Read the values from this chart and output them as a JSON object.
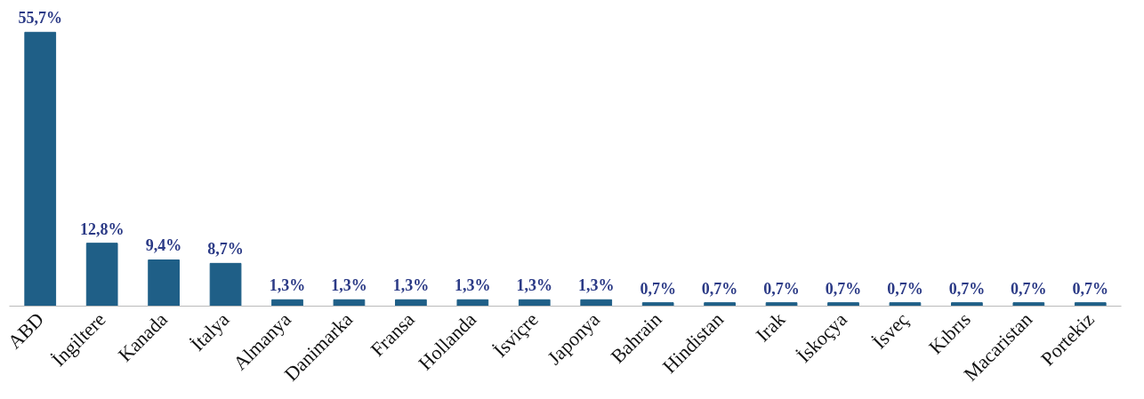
{
  "chart_data": {
    "type": "bar",
    "categories": [
      "ABD",
      "İngiltere",
      "Kanada",
      "İtalya",
      "Almanya",
      "Danimarka",
      "Fransa",
      "Hollanda",
      "İsviçre",
      "Japonya",
      "Bahrain",
      "Hindistan",
      "Irak",
      "İskoçya",
      "İsveç",
      "Kıbrıs",
      "Macaristan",
      "Portekiz"
    ],
    "values": [
      55.7,
      12.8,
      9.4,
      8.7,
      1.3,
      1.3,
      1.3,
      1.3,
      1.3,
      1.3,
      0.7,
      0.7,
      0.7,
      0.7,
      0.7,
      0.7,
      0.7,
      0.7
    ],
    "value_labels": [
      "55,7%",
      "12,8%",
      "9,4%",
      "8,7%",
      "1,3%",
      "1,3%",
      "1,3%",
      "1,3%",
      "1,3%",
      "1,3%",
      "0,7%",
      "0,7%",
      "0,7%",
      "0,7%",
      "0,7%",
      "0,7%",
      "0,7%",
      "0,7%"
    ],
    "color": "#1f5f87",
    "grid": false
  }
}
